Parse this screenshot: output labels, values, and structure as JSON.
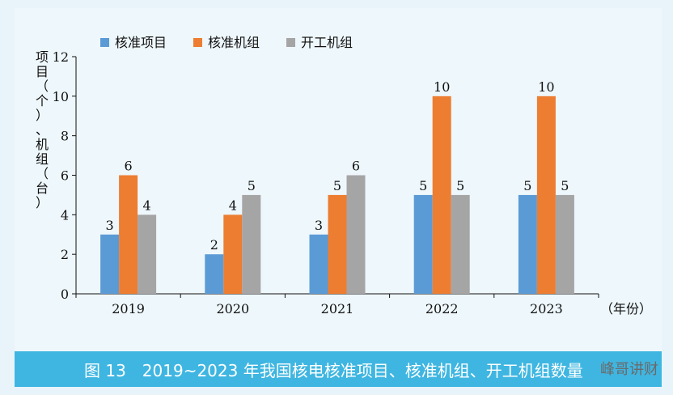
{
  "chart_data": {
    "type": "bar",
    "categories": [
      "2019",
      "2020",
      "2021",
      "2022",
      "2023"
    ],
    "series": [
      {
        "name": "核准项目",
        "values": [
          3,
          2,
          3,
          5,
          5
        ],
        "color": "#5b9bd5"
      },
      {
        "name": "核准机组",
        "values": [
          6,
          4,
          5,
          10,
          10
        ],
        "color": "#ed7d31"
      },
      {
        "name": "开工机组",
        "values": [
          4,
          5,
          6,
          5,
          5
        ],
        "color": "#a5a5a5"
      }
    ],
    "ylabel": "项目（个）、机组（台）",
    "xlabel": "（年份）",
    "ylim": [
      0,
      12
    ],
    "yticks": [
      0,
      2,
      4,
      6,
      8,
      10,
      12
    ],
    "legend": "top-left",
    "grid": false
  },
  "caption": "图 13　2019~2023 年我国核电核准项目、核准机组、开工机组数量",
  "watermark": "峰哥讲财"
}
